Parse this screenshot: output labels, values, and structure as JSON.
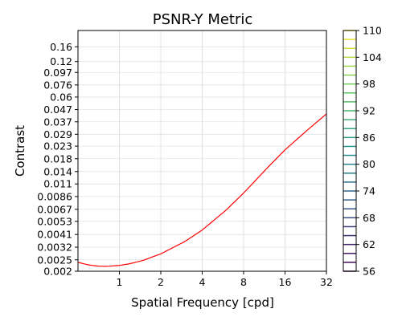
{
  "chart_data": {
    "type": "contour",
    "title": "PSNR-Y Metric",
    "xlabel": "Spatial Frequency [cpd]",
    "ylabel": "Contrast",
    "xscale": "log2",
    "yscale": "log",
    "xlim": [
      0.5,
      32
    ],
    "ylim": [
      0.002,
      0.22
    ],
    "x_ticks": [
      1,
      2,
      4,
      8,
      16,
      32
    ],
    "x_tick_labels": [
      "1",
      "2",
      "4",
      "8",
      "16",
      "32"
    ],
    "y_ticks": [
      0.002,
      0.0025,
      0.0032,
      0.0041,
      0.0053,
      0.0067,
      0.0086,
      0.011,
      0.014,
      0.018,
      0.023,
      0.029,
      0.037,
      0.047,
      0.06,
      0.076,
      0.097,
      0.12,
      0.16
    ],
    "y_tick_labels": [
      "0.002",
      "0.0025",
      "0.0032",
      "0.0041",
      "0.0053",
      "0.0067",
      "0.0086",
      "0.011",
      "0.014",
      "0.018",
      "0.023",
      "0.029",
      "0.037",
      "0.047",
      "0.06",
      "0.076",
      "0.097",
      "0.12",
      "0.16"
    ],
    "grid": true,
    "colormap": "viridis",
    "contour_level_range": [
      56,
      110
    ],
    "contour_level_step": 2,
    "contour_falloff_start_x": 22.6,
    "colorbar": {
      "ticks": [
        56,
        62,
        68,
        74,
        80,
        86,
        92,
        98,
        104,
        110
      ],
      "tick_labels": [
        "56",
        "62",
        "68",
        "74",
        "80",
        "86",
        "92",
        "98",
        "104",
        "110"
      ]
    },
    "threshold_curve": {
      "color": "#ff0000",
      "x": [
        0.5,
        0.6,
        0.7,
        0.8,
        1,
        1.2,
        1.5,
        2,
        3,
        4,
        6,
        8,
        12,
        16,
        24,
        32
      ],
      "y": [
        0.00238,
        0.00226,
        0.00221,
        0.0022,
        0.00224,
        0.00232,
        0.00248,
        0.00281,
        0.00358,
        0.00447,
        0.00664,
        0.0092,
        0.0152,
        0.0214,
        0.0325,
        0.0431
      ]
    }
  }
}
